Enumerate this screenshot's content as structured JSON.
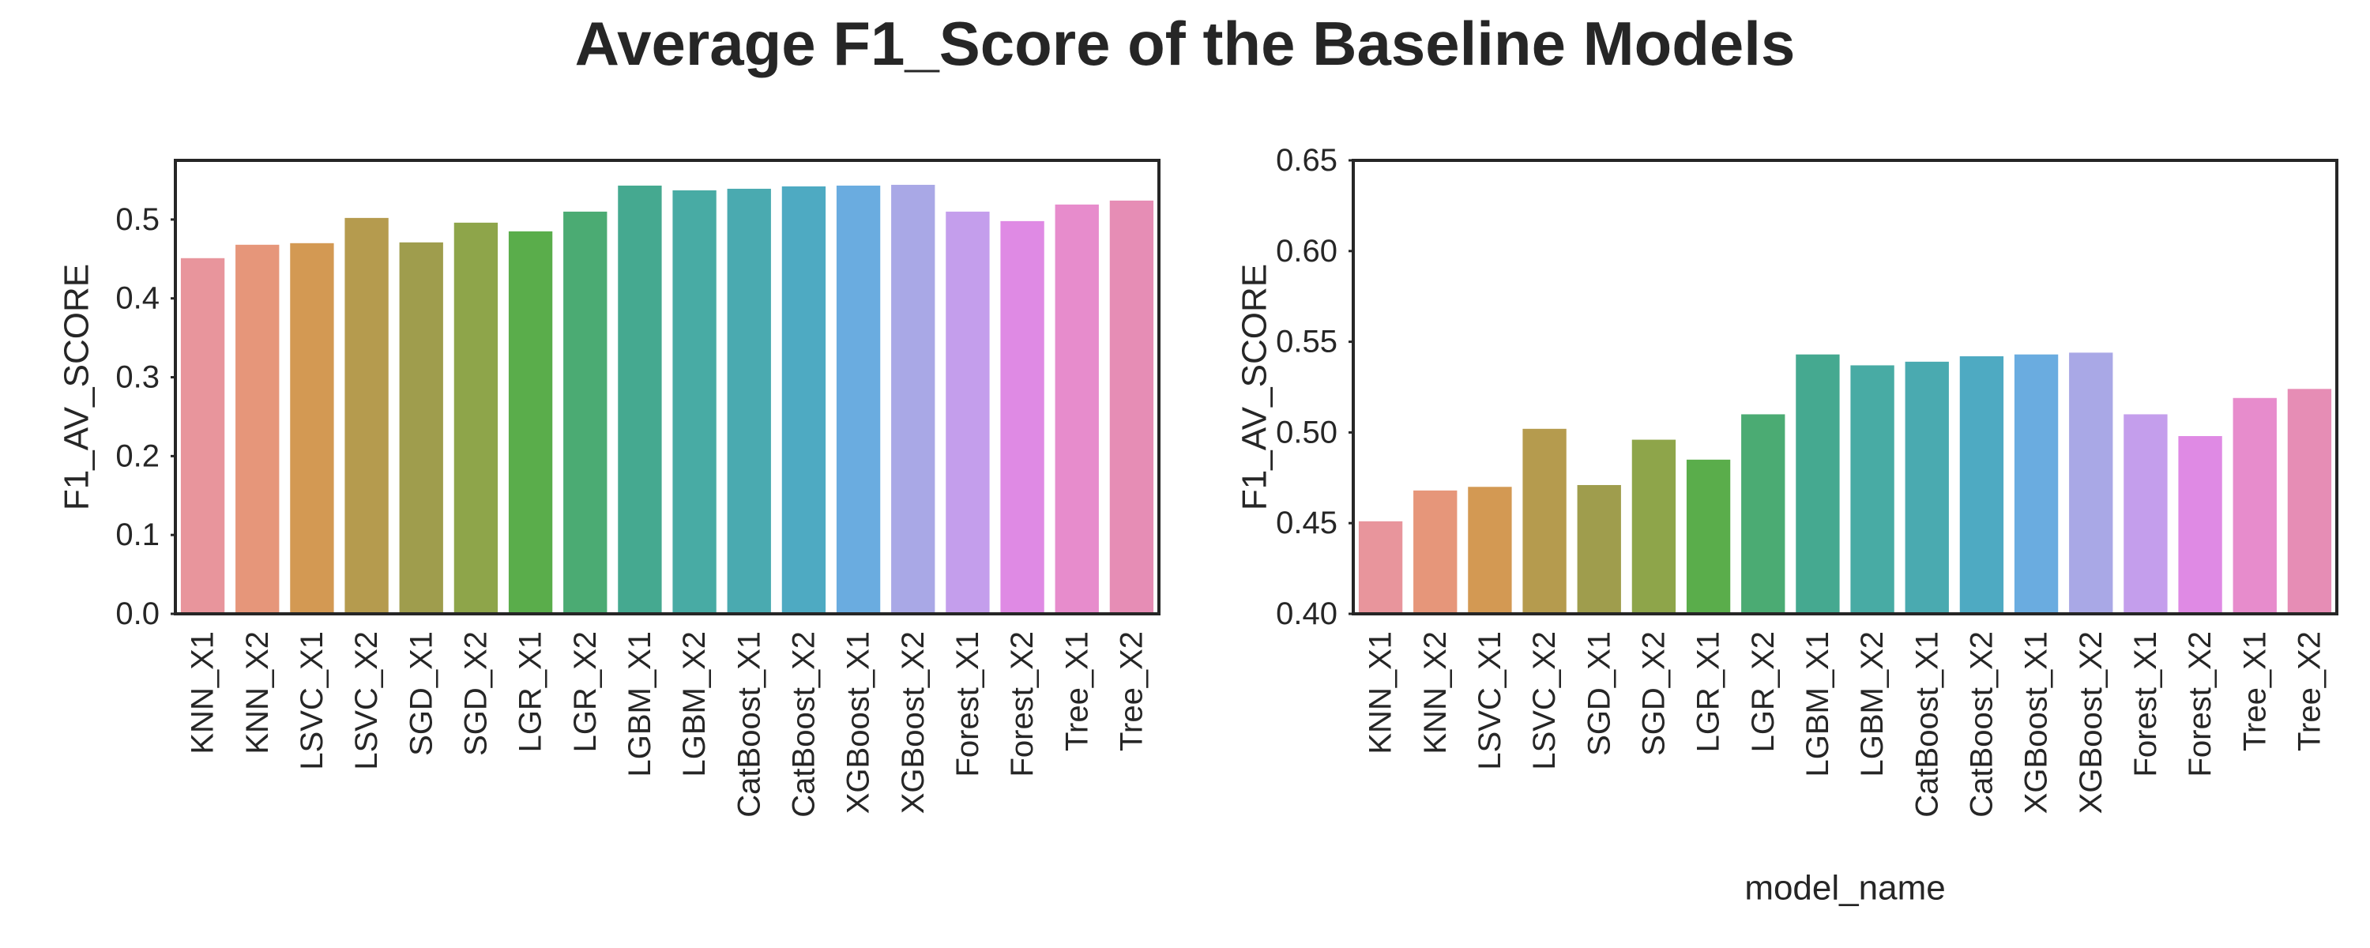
{
  "figure": {
    "title": "Average F1_Score of the Baseline Models"
  },
  "chart_data": [
    {
      "type": "bar",
      "title": "",
      "xlabel": "",
      "ylabel": "F1_AV_SCORE",
      "ylim": [
        0,
        0.575
      ],
      "yticks": [
        0.0,
        0.1,
        0.2,
        0.3,
        0.4,
        0.5
      ],
      "ytick_labels": [
        "0.0",
        "0.1",
        "0.2",
        "0.3",
        "0.4",
        "0.5"
      ],
      "grid": false,
      "categories": [
        "KNN_X1",
        "KNN_X2",
        "LSVC_X1",
        "LSVC_X2",
        "SGD_X1",
        "SGD_X2",
        "LGR_X1",
        "LGR_X2",
        "LGBM_X1",
        "LGBM_X2",
        "CatBoost_X1",
        "CatBoost_X2",
        "XGBoost_X1",
        "XGBoost_X2",
        "Forest_X1",
        "Forest_X2",
        "Tree_X1",
        "Tree_X2"
      ],
      "values": [
        0.451,
        0.468,
        0.47,
        0.502,
        0.471,
        0.496,
        0.485,
        0.51,
        0.543,
        0.537,
        0.539,
        0.542,
        0.543,
        0.544,
        0.51,
        0.498,
        0.519,
        0.524
      ],
      "colors": [
        "#e8959c",
        "#e6967a",
        "#d39953",
        "#b59b4e",
        "#9f9d4d",
        "#8ea54a",
        "#5aad4b",
        "#4bab73",
        "#45a990",
        "#48aba4",
        "#4aaab0",
        "#4eaac2",
        "#6aace0",
        "#a9a8e6",
        "#c49eec",
        "#df8ae4",
        "#e78ccc",
        "#e68db5"
      ]
    },
    {
      "type": "bar",
      "title": "",
      "xlabel": "model_name",
      "ylabel": "F1_AV_SCORE",
      "ylim": [
        0.4,
        0.65
      ],
      "yticks": [
        0.4,
        0.45,
        0.5,
        0.55,
        0.6,
        0.65
      ],
      "ytick_labels": [
        "0.40",
        "0.45",
        "0.50",
        "0.55",
        "0.60",
        "0.65"
      ],
      "grid": false,
      "categories": [
        "KNN_X1",
        "KNN_X2",
        "LSVC_X1",
        "LSVC_X2",
        "SGD_X1",
        "SGD_X2",
        "LGR_X1",
        "LGR_X2",
        "LGBM_X1",
        "LGBM_X2",
        "CatBoost_X1",
        "CatBoost_X2",
        "XGBoost_X1",
        "XGBoost_X2",
        "Forest_X1",
        "Forest_X2",
        "Tree_X1",
        "Tree_X2"
      ],
      "values": [
        0.451,
        0.468,
        0.47,
        0.502,
        0.471,
        0.496,
        0.485,
        0.51,
        0.543,
        0.537,
        0.539,
        0.542,
        0.543,
        0.544,
        0.51,
        0.498,
        0.519,
        0.524
      ],
      "colors": [
        "#e8959c",
        "#e6967a",
        "#d39953",
        "#b59b4e",
        "#9f9d4d",
        "#8ea54a",
        "#5aad4b",
        "#4bab73",
        "#45a990",
        "#48aba4",
        "#4aaab0",
        "#4eaac2",
        "#6aace0",
        "#a9a8e6",
        "#c49eec",
        "#df8ae4",
        "#e78ccc",
        "#e68db5"
      ]
    }
  ]
}
